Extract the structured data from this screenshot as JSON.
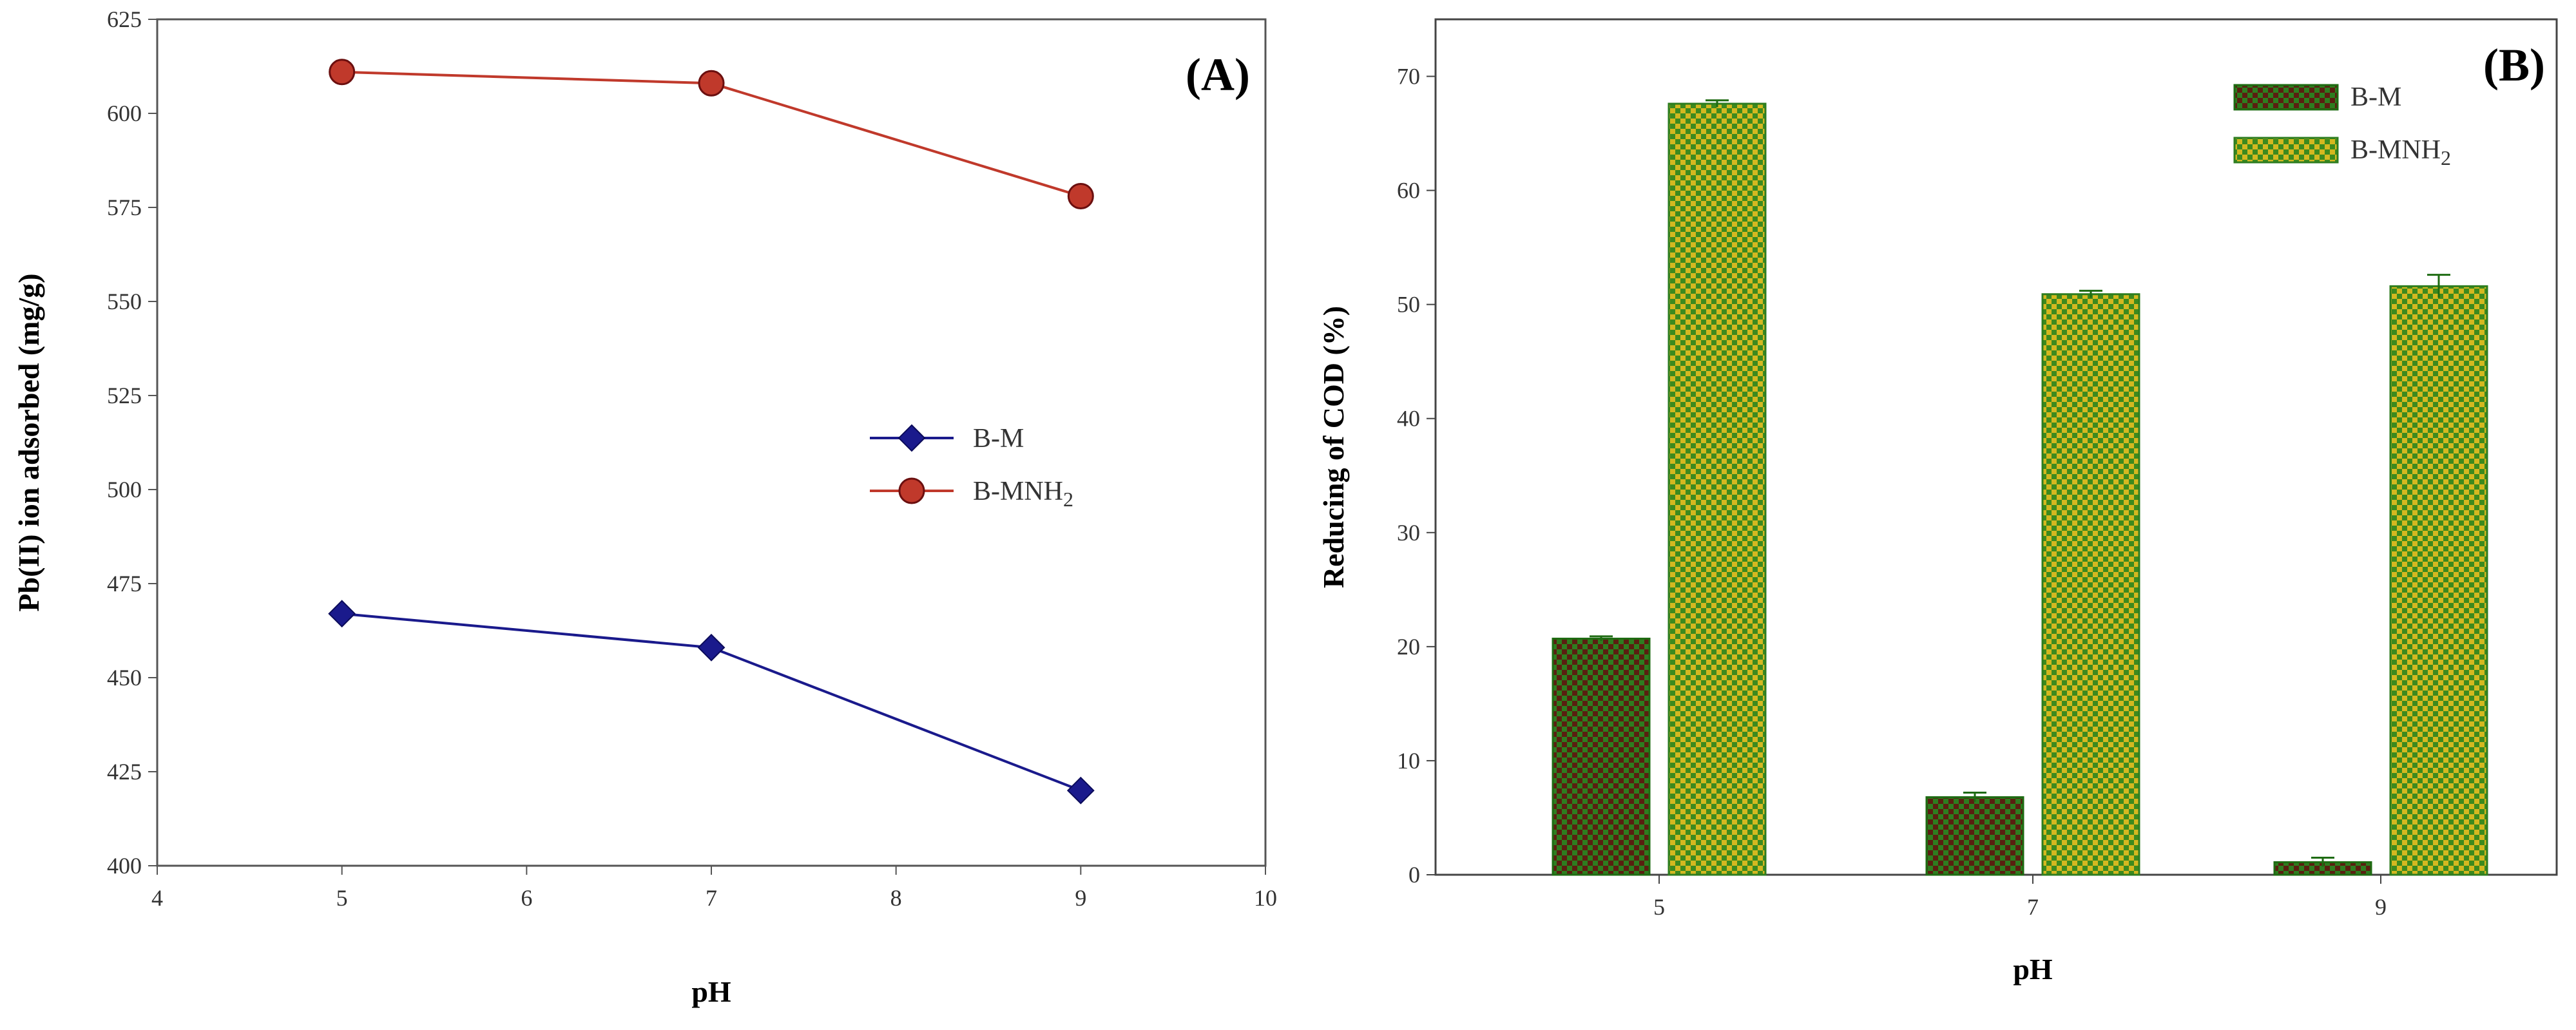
{
  "chart_data": [
    {
      "type": "line",
      "panel_label": "(A)",
      "title": "",
      "xlabel": "pH",
      "ylabel": "Pb(II) ion adsorbed (mg/g)",
      "xlim": [
        4,
        10
      ],
      "ylim": [
        400,
        625
      ],
      "xticks": [
        4,
        5,
        6,
        7,
        8,
        9,
        10
      ],
      "yticks": [
        400,
        425,
        450,
        475,
        500,
        525,
        550,
        575,
        600,
        625
      ],
      "grid": false,
      "legend_position": "center-right",
      "x": [
        5,
        7,
        9
      ],
      "series": [
        {
          "name": "B-M",
          "name_main": "B-M",
          "name_sub": "",
          "color": "#1a1a8c",
          "marker": "diamond",
          "values": [
            467,
            458,
            420
          ]
        },
        {
          "name": "B-MNH2",
          "name_main": "B-MNH",
          "name_sub": "2",
          "color": "#c0392b",
          "marker": "circle",
          "values": [
            611,
            608,
            578
          ]
        }
      ]
    },
    {
      "type": "bar",
      "panel_label": "(B)",
      "title": "",
      "xlabel": "pH",
      "ylabel": "Reducing of COD (%)",
      "ylim": [
        0,
        75
      ],
      "yticks": [
        0,
        10,
        20,
        30,
        40,
        50,
        60,
        70
      ],
      "grid": false,
      "legend_position": "top-right",
      "categories": [
        "5",
        "7",
        "9"
      ],
      "series": [
        {
          "name": "B-M",
          "name_main": "B-M",
          "name_sub": "",
          "pattern": "checker-dark-red-green",
          "color_a": "#5a1f10",
          "color_b": "#2e7d1f",
          "values": [
            20.7,
            6.8,
            1.1
          ],
          "errors": [
            0.2,
            0.4,
            0.4
          ]
        },
        {
          "name": "B-MNH2",
          "name_main": "B-MNH",
          "name_sub": "2",
          "pattern": "checker-yellow-green",
          "color_a": "#d4b820",
          "color_b": "#3c8a1e",
          "values": [
            67.6,
            50.9,
            51.6
          ],
          "errors": [
            0.3,
            0.3,
            1.0
          ]
        }
      ]
    }
  ]
}
